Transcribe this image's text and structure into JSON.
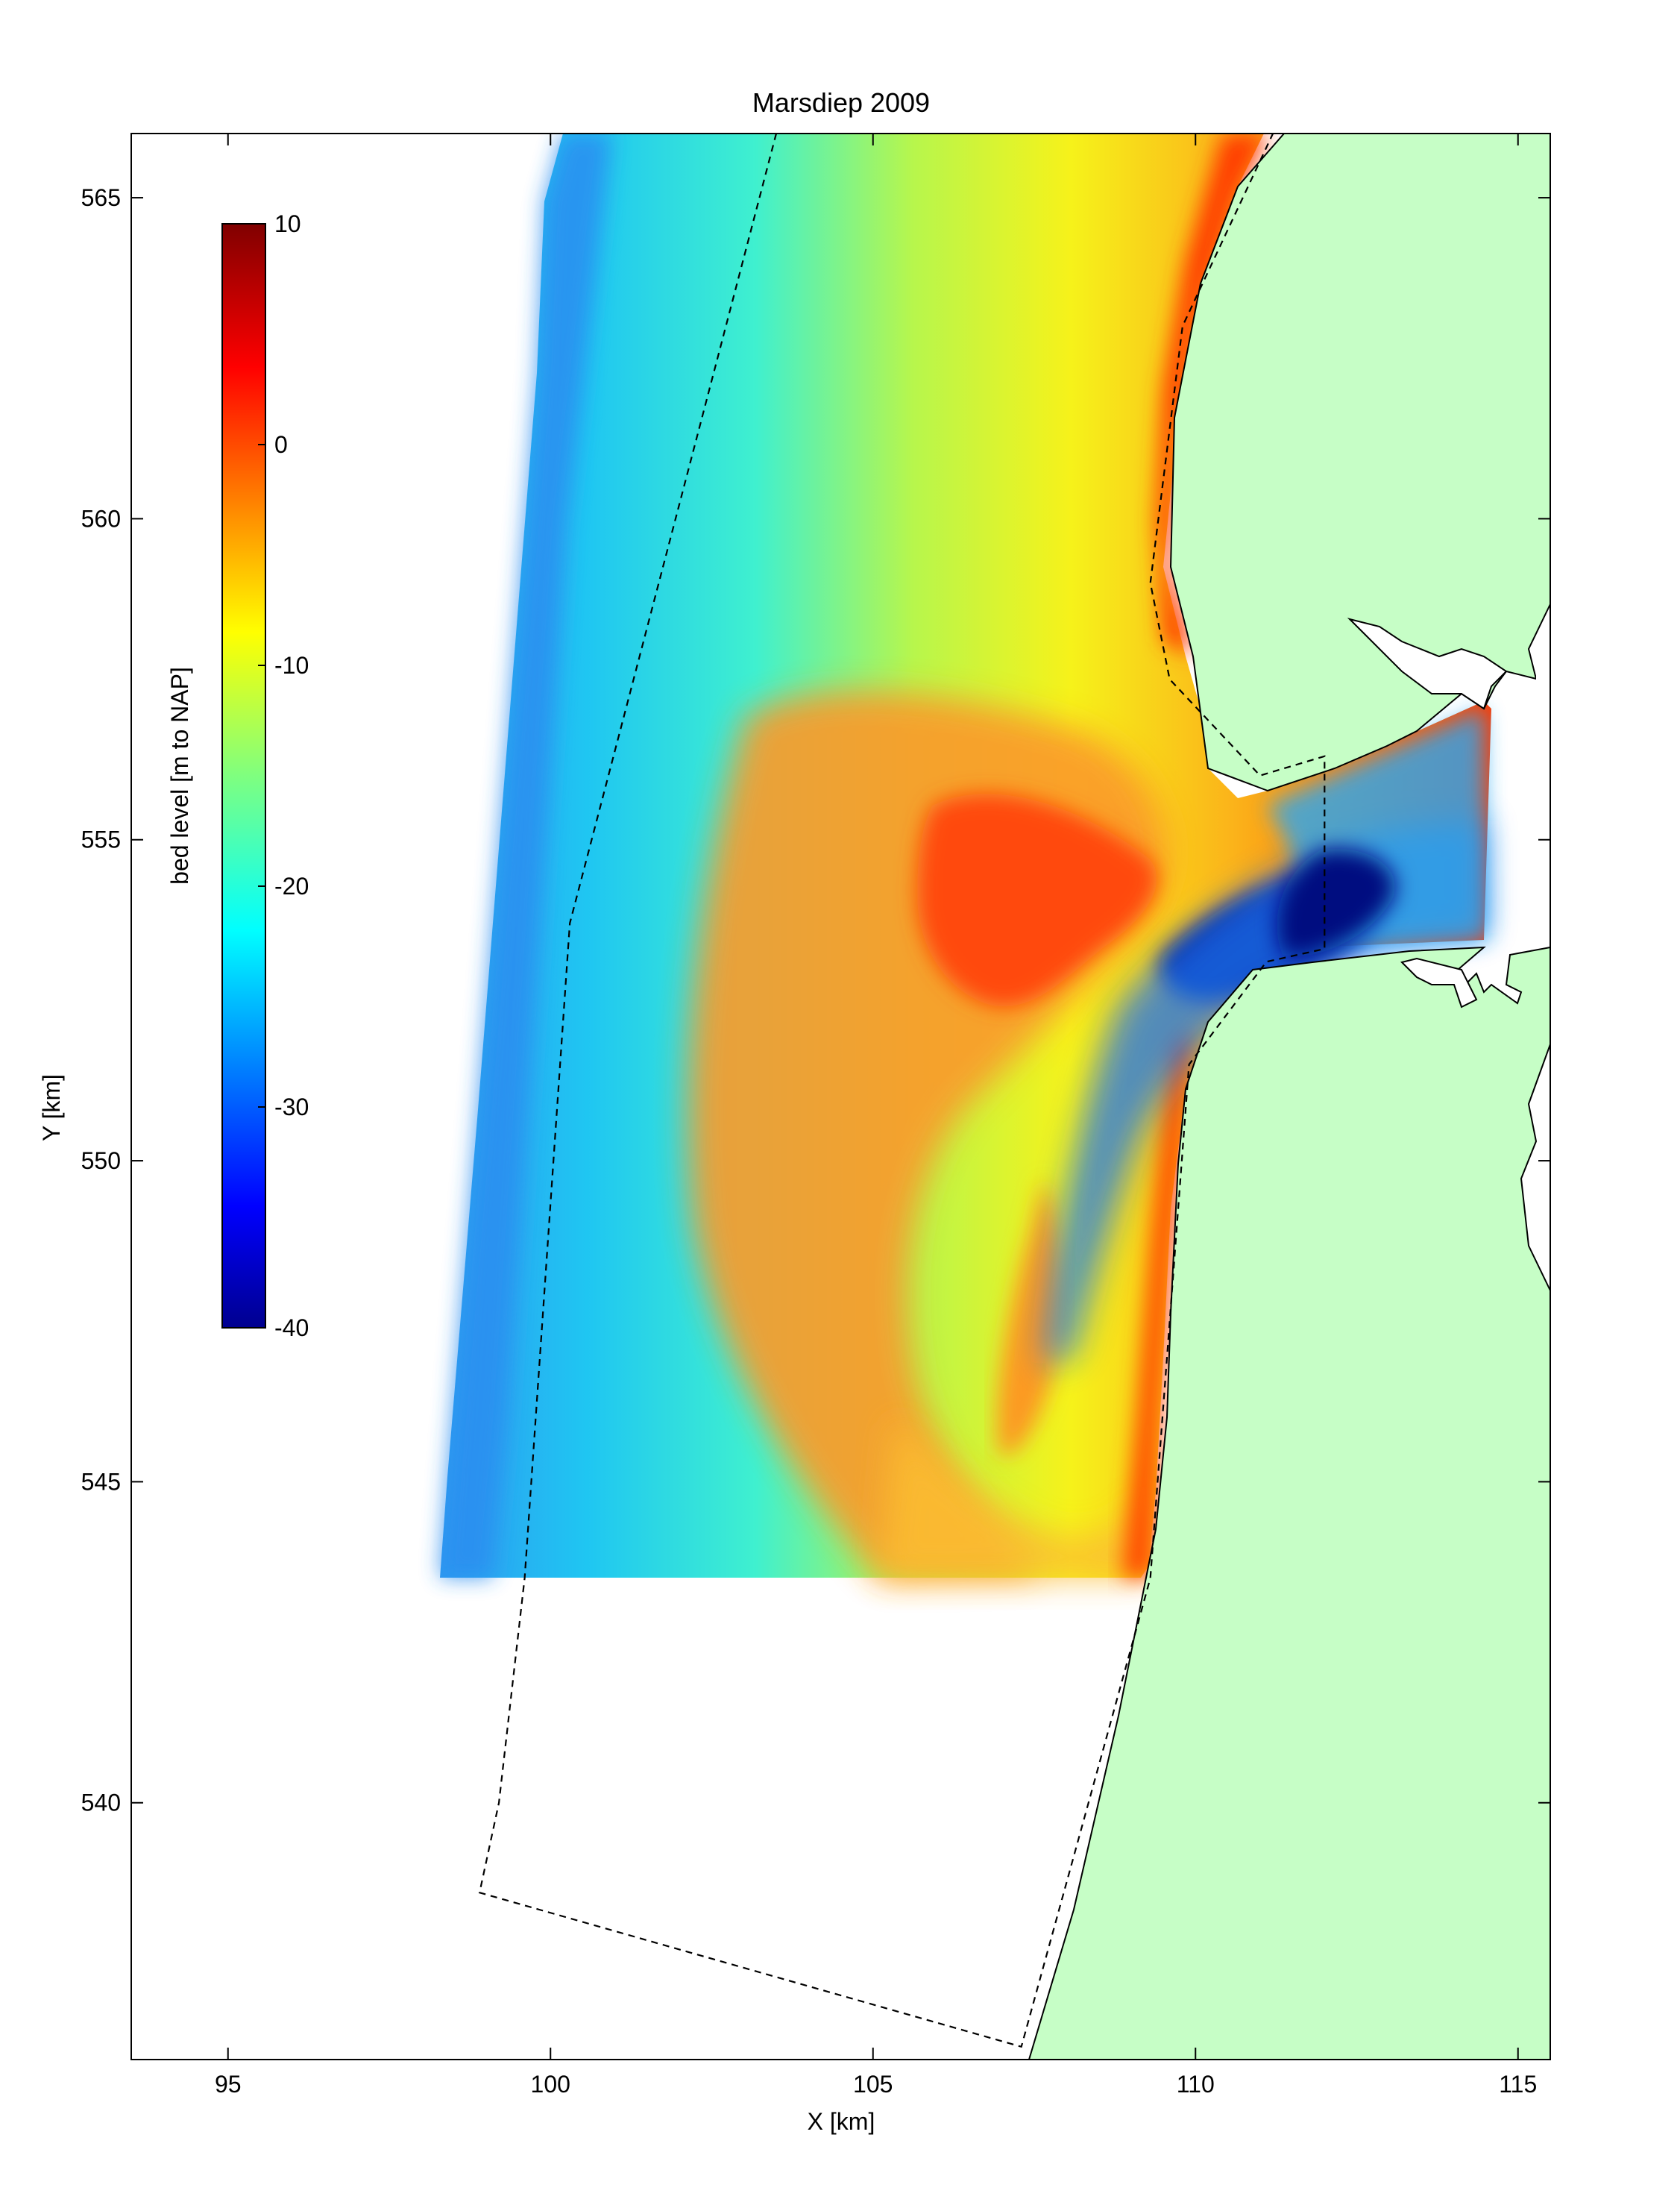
{
  "chart_data": {
    "type": "heatmap",
    "title": "Marsdiep 2009",
    "xlabel": "X [km]",
    "ylabel": "Y [km]",
    "xlim": [
      93.5,
      115.5
    ],
    "ylim": [
      536,
      566
    ],
    "xticks": [
      95,
      100,
      105,
      110,
      115
    ],
    "yticks": [
      540,
      545,
      550,
      555,
      560,
      565
    ],
    "colorbar": {
      "label": "bed level [m to NAP]",
      "range": [
        -40,
        10
      ],
      "ticks": [
        10,
        0,
        -10,
        -20,
        -30,
        -40
      ],
      "colormap": "jet",
      "placement": "upper-left inside axes"
    },
    "land_color": "#c6fec6",
    "survey_area": {
      "x_range": [
        98.3,
        114.5
      ],
      "y_range": [
        543.5,
        566
      ]
    },
    "dashed_outline": [
      [
        103.5,
        566
      ],
      [
        100.3,
        553.7
      ],
      [
        99.6,
        543.5
      ],
      [
        99.2,
        540
      ],
      [
        98.9,
        538.6
      ],
      [
        107.3,
        536.2
      ],
      [
        109.3,
        543.5
      ],
      [
        109.9,
        551.5
      ],
      [
        111.1,
        553.1
      ],
      [
        112.0,
        553.3
      ],
      [
        112.0,
        556.3
      ],
      [
        111.0,
        556.0
      ],
      [
        109.6,
        557.5
      ],
      [
        109.3,
        559.0
      ],
      [
        109.8,
        563.0
      ],
      [
        111.2,
        566
      ]
    ]
  }
}
